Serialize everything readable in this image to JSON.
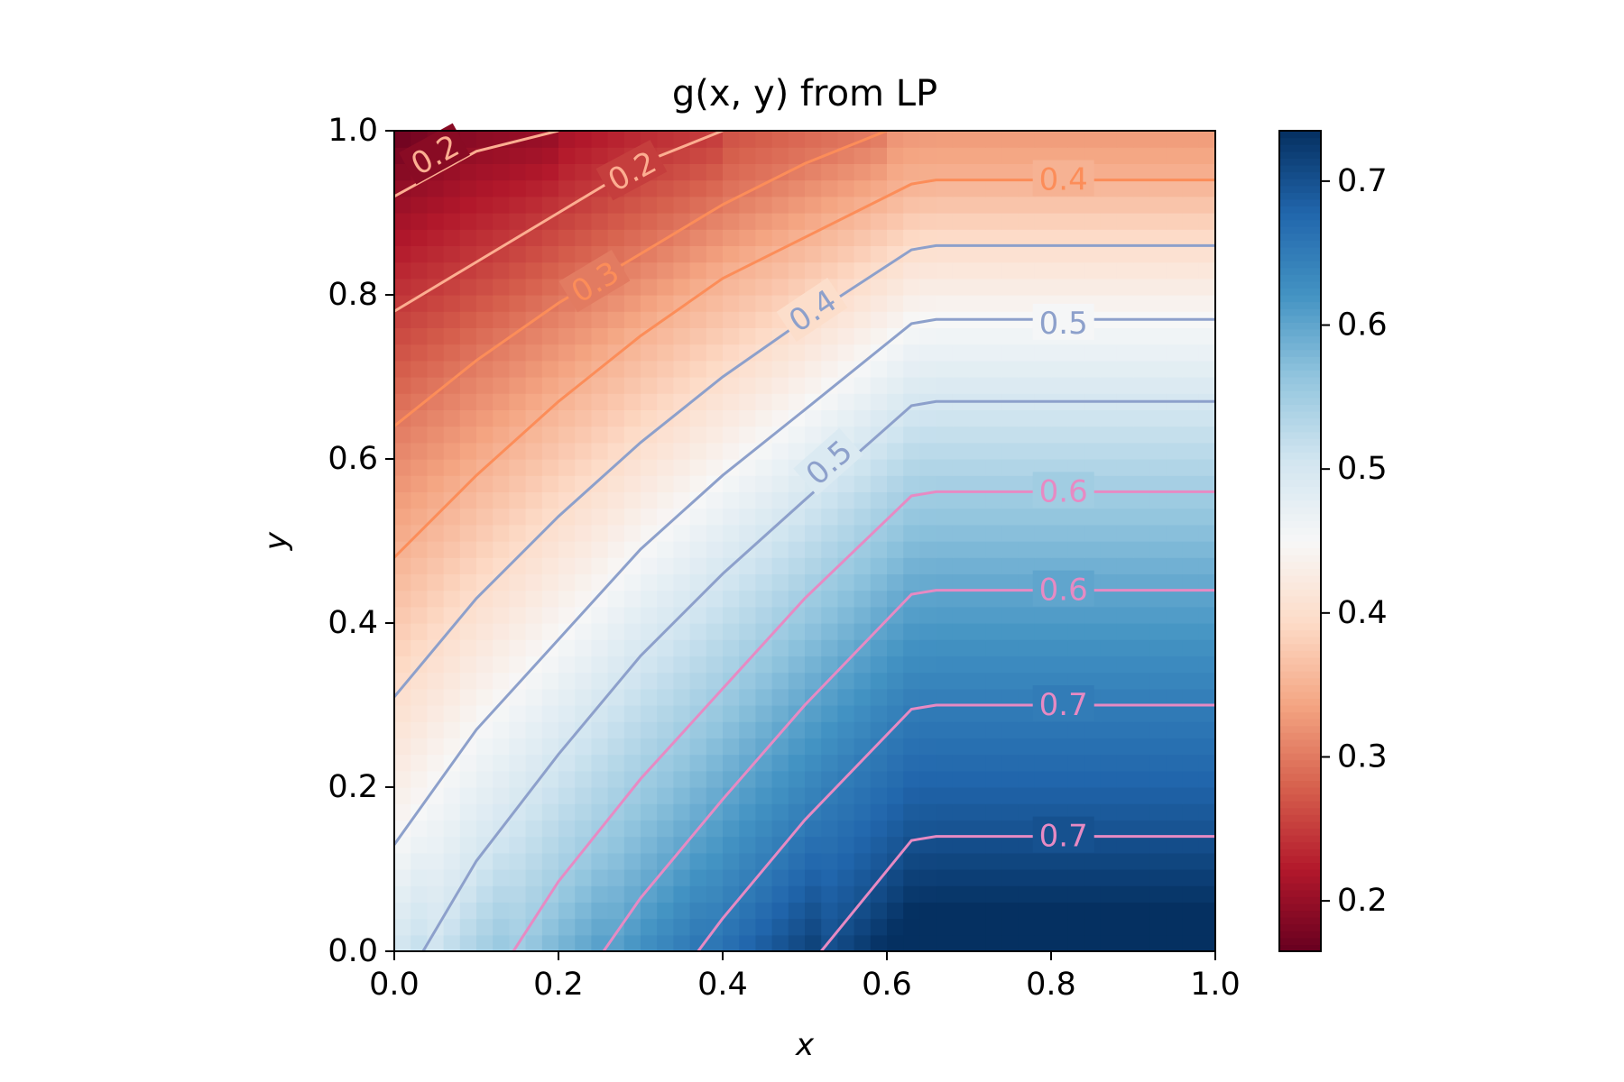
{
  "chart_data": {
    "type": "heatmap",
    "title": "g(x, y) from LP",
    "xlabel": "x",
    "ylabel": "y",
    "xlim": [
      0,
      1
    ],
    "ylim": [
      0,
      1
    ],
    "x_ticks": [
      "0.0",
      "0.2",
      "0.4",
      "0.6",
      "0.8",
      "1.0"
    ],
    "y_ticks": [
      "0.0",
      "0.2",
      "0.4",
      "0.6",
      "0.8",
      "1.0"
    ],
    "grid": false,
    "colormap": "RdBu",
    "colorbar": {
      "range": [
        0.165,
        0.735
      ],
      "ticks": [
        "0.2",
        "0.3",
        "0.4",
        "0.5",
        "0.6",
        "0.7"
      ]
    },
    "function": {
      "description": "g rises with x until a kink at x ≈ 0.64, then stays constant in x; g falls as y grows",
      "kink_x": 0.64,
      "samples": [
        {
          "x": 0.0,
          "y": 1.0,
          "g": 0.165
        },
        {
          "x": 0.0,
          "y": 0.92,
          "g": 0.2
        },
        {
          "x": 0.0,
          "y": 0.78,
          "g": 0.25
        },
        {
          "x": 0.0,
          "y": 0.48,
          "g": 0.35
        },
        {
          "x": 0.0,
          "y": 0.31,
          "g": 0.4
        },
        {
          "x": 0.0,
          "y": 0.13,
          "g": 0.45
        },
        {
          "x": 1.0,
          "y": 0.94,
          "g": 0.35
        },
        {
          "x": 1.0,
          "y": 0.77,
          "g": 0.45
        },
        {
          "x": 1.0,
          "y": 0.0,
          "g": 0.735
        }
      ]
    },
    "contours": [
      {
        "level": 0.2,
        "label": "0.2",
        "color": "#fcae91",
        "label_at": [
          0.05,
          0.97
        ],
        "points": [
          [
            0.0,
            0.92
          ],
          [
            0.1,
            0.975
          ],
          [
            0.2,
            1.0
          ]
        ]
      },
      {
        "level": 0.25,
        "label": "0.2",
        "color": "#fcae91",
        "label_at": [
          0.29,
          0.95
        ],
        "points": [
          [
            0.0,
            0.78
          ],
          [
            0.1,
            0.84
          ],
          [
            0.2,
            0.9
          ],
          [
            0.3,
            0.96
          ],
          [
            0.4,
            1.0
          ]
        ]
      },
      {
        "level": 0.3,
        "label": "0.3",
        "color": "#fc8d59",
        "label_at": [
          0.245,
          0.815
        ],
        "points": [
          [
            0.0,
            0.64
          ],
          [
            0.1,
            0.72
          ],
          [
            0.2,
            0.79
          ],
          [
            0.3,
            0.85
          ],
          [
            0.4,
            0.91
          ],
          [
            0.5,
            0.96
          ],
          [
            0.6,
            1.0
          ]
        ]
      },
      {
        "level": 0.35,
        "label": "0.4",
        "color": "#fc8d59",
        "label_at": [
          0.815,
          0.94
        ],
        "points": [
          [
            0.0,
            0.48
          ],
          [
            0.1,
            0.58
          ],
          [
            0.2,
            0.67
          ],
          [
            0.3,
            0.75
          ],
          [
            0.4,
            0.82
          ],
          [
            0.5,
            0.87
          ],
          [
            0.63,
            0.935
          ],
          [
            0.66,
            0.94
          ],
          [
            1.0,
            0.94
          ]
        ]
      },
      {
        "level": 0.4,
        "label": "0.4",
        "color": "#8da0cb",
        "label_at": [
          0.51,
          0.78
        ],
        "points": [
          [
            0.0,
            0.31
          ],
          [
            0.1,
            0.43
          ],
          [
            0.2,
            0.53
          ],
          [
            0.3,
            0.62
          ],
          [
            0.4,
            0.7
          ],
          [
            0.5,
            0.77
          ],
          [
            0.63,
            0.855
          ],
          [
            0.66,
            0.86
          ],
          [
            1.0,
            0.86
          ]
        ]
      },
      {
        "level": 0.45,
        "label": "0.5",
        "color": "#8da0cb",
        "label_at": [
          0.815,
          0.765
        ],
        "points": [
          [
            0.0,
            0.13
          ],
          [
            0.1,
            0.27
          ],
          [
            0.2,
            0.38
          ],
          [
            0.3,
            0.49
          ],
          [
            0.4,
            0.58
          ],
          [
            0.5,
            0.66
          ],
          [
            0.63,
            0.765
          ],
          [
            0.66,
            0.77
          ],
          [
            1.0,
            0.77
          ]
        ]
      },
      {
        "level": 0.5,
        "label": "0.5",
        "color": "#8da0cb",
        "label_at": [
          0.53,
          0.595
        ],
        "points": [
          [
            0.035,
            0.0
          ],
          [
            0.1,
            0.11
          ],
          [
            0.2,
            0.24
          ],
          [
            0.3,
            0.36
          ],
          [
            0.4,
            0.46
          ],
          [
            0.5,
            0.55
          ],
          [
            0.63,
            0.665
          ],
          [
            0.66,
            0.67
          ],
          [
            1.0,
            0.67
          ]
        ]
      },
      {
        "level": 0.55,
        "label": "0.6",
        "color": "#e78ac3",
        "label_at": [
          0.815,
          0.56
        ],
        "points": [
          [
            0.145,
            0.0
          ],
          [
            0.2,
            0.085
          ],
          [
            0.3,
            0.21
          ],
          [
            0.4,
            0.32
          ],
          [
            0.5,
            0.43
          ],
          [
            0.63,
            0.555
          ],
          [
            0.66,
            0.56
          ],
          [
            1.0,
            0.56
          ]
        ]
      },
      {
        "level": 0.6,
        "label": "0.6",
        "color": "#e78ac3",
        "label_at": [
          0.815,
          0.44
        ],
        "points": [
          [
            0.255,
            0.0
          ],
          [
            0.3,
            0.065
          ],
          [
            0.4,
            0.185
          ],
          [
            0.5,
            0.3
          ],
          [
            0.63,
            0.435
          ],
          [
            0.66,
            0.44
          ],
          [
            1.0,
            0.44
          ]
        ]
      },
      {
        "level": 0.65,
        "label": "0.7",
        "color": "#e78ac3",
        "label_at": [
          0.815,
          0.3
        ],
        "points": [
          [
            0.37,
            0.0
          ],
          [
            0.4,
            0.04
          ],
          [
            0.5,
            0.16
          ],
          [
            0.63,
            0.295
          ],
          [
            0.66,
            0.3
          ],
          [
            1.0,
            0.3
          ]
        ]
      },
      {
        "level": 0.7,
        "label": "0.7",
        "color": "#e78ac3",
        "label_at": [
          0.815,
          0.14
        ],
        "points": [
          [
            0.52,
            0.0
          ],
          [
            0.63,
            0.135
          ],
          [
            0.66,
            0.14
          ],
          [
            1.0,
            0.14
          ]
        ]
      }
    ]
  }
}
